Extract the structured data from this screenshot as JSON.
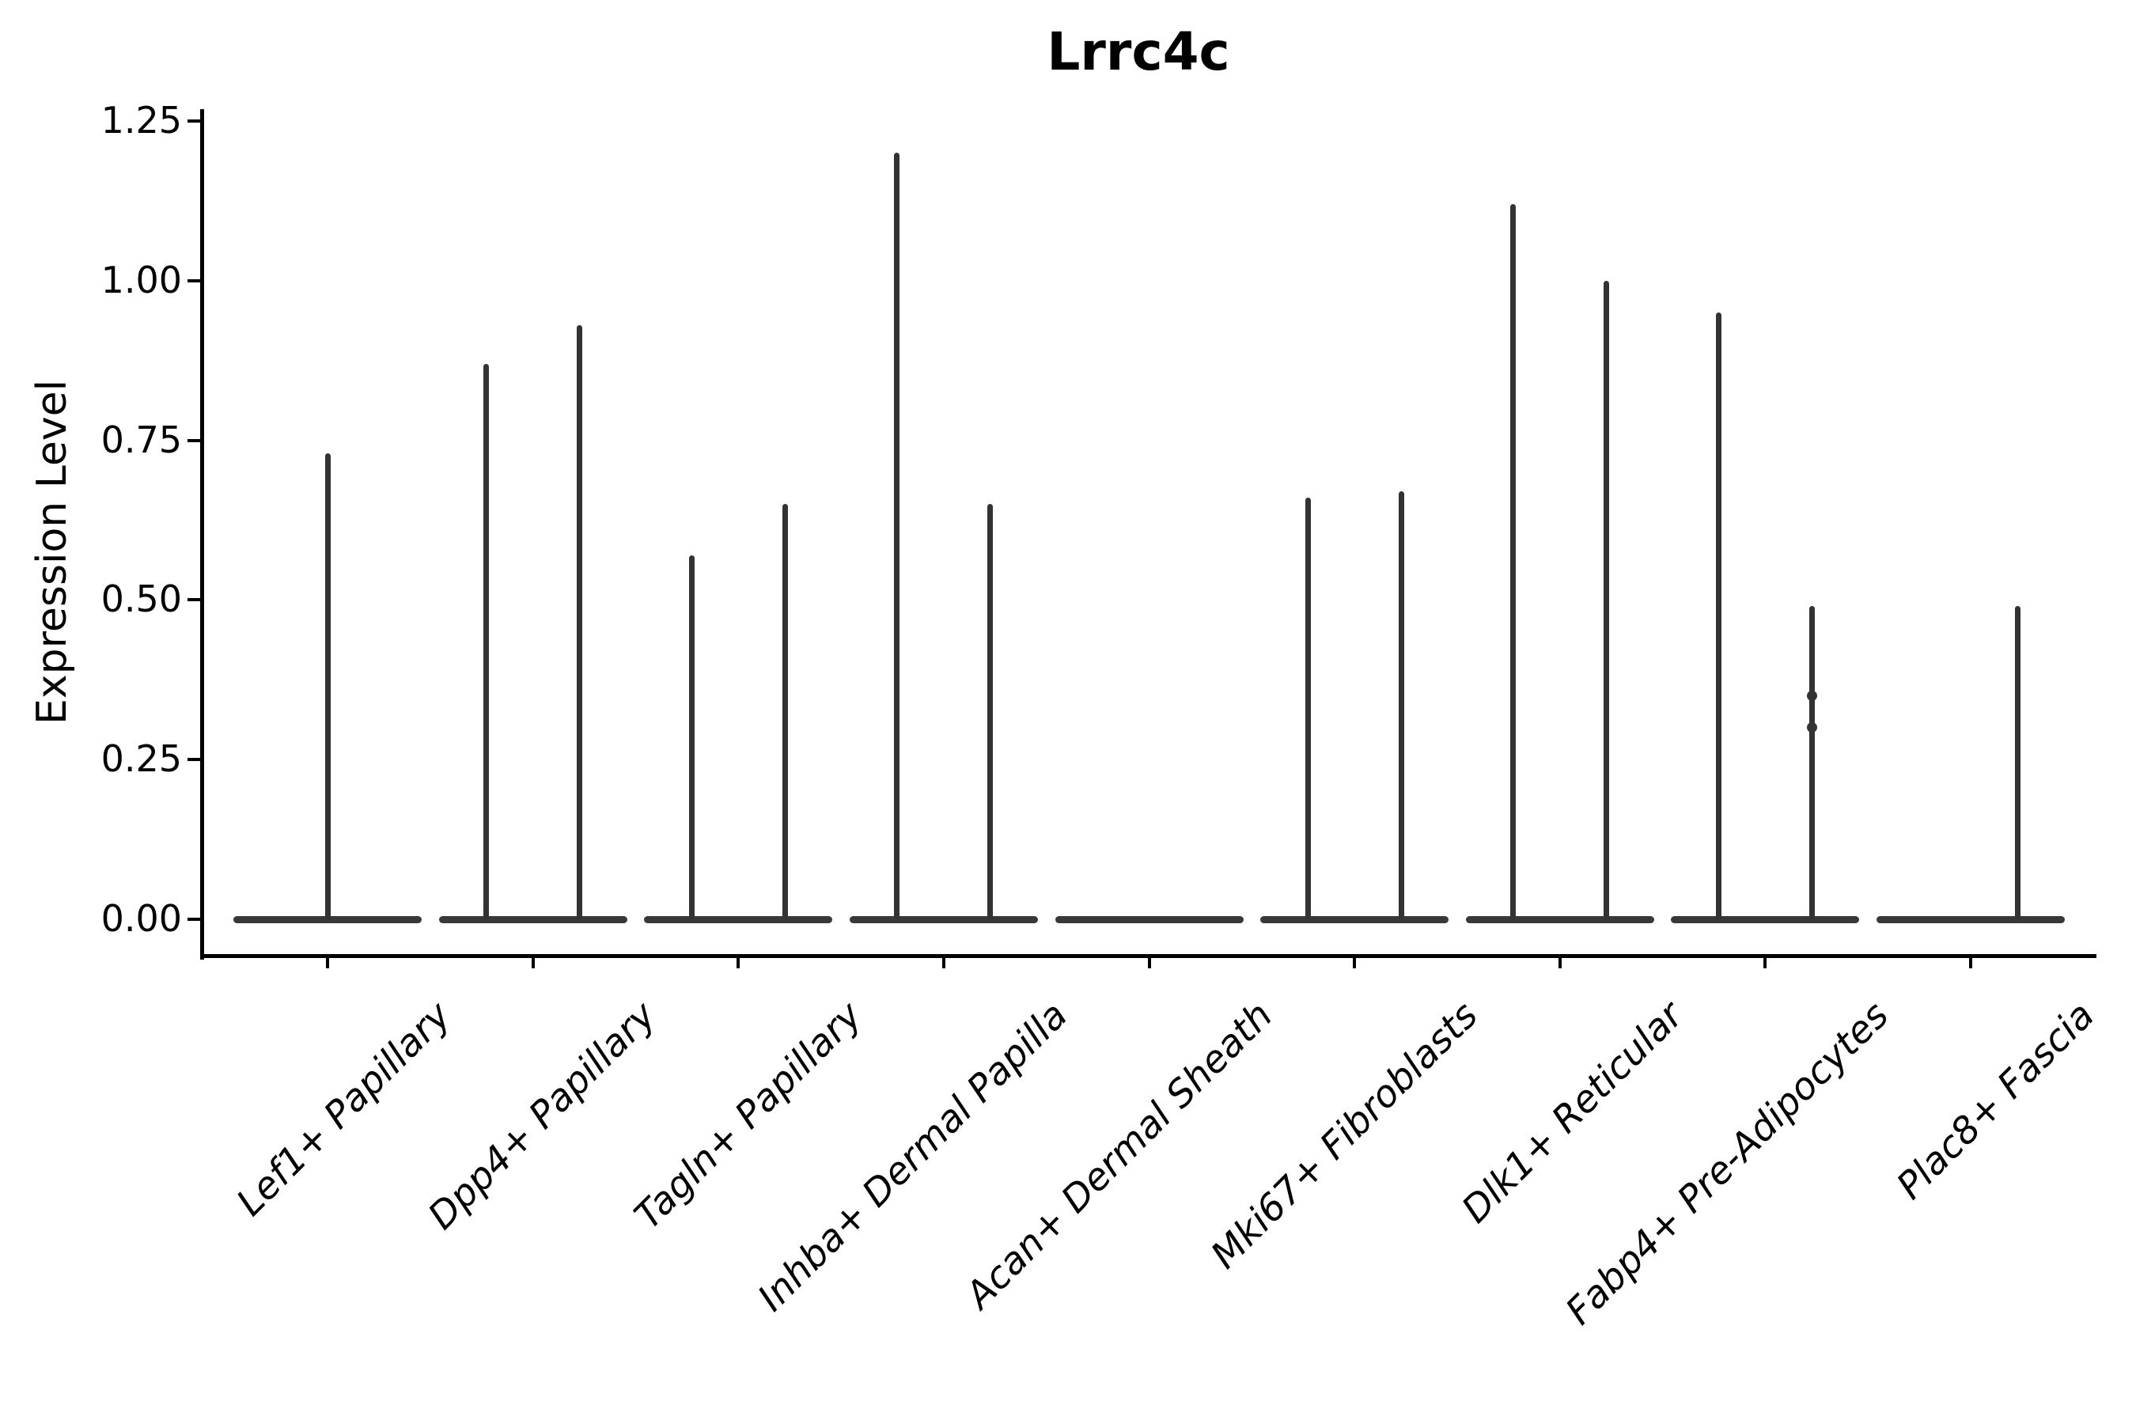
{
  "chart_data": {
    "type": "violin",
    "title": "Lrrc4c",
    "ylabel": "Expression Level",
    "xlabel": "",
    "grid": false,
    "legend": "none",
    "ylim": [
      -0.06,
      1.27
    ],
    "ytick_values": [
      0.0,
      0.25,
      0.5,
      0.75,
      1.0,
      1.25
    ],
    "ytick_labels": [
      "0.00",
      "0.25",
      "0.50",
      "0.75",
      "1.00",
      "1.25"
    ],
    "categories": [
      "Lef1+ Papillary",
      "Dpp4+ Papillary",
      "Tagln+ Papillary",
      "Inhba+ Dermal Papilla",
      "Acan+ Dermal Sheath",
      "Mki67+ Fibroblasts",
      "Dlk1+ Reticular",
      "Fabp4+ Pre-Adipocytes",
      "Plac8+ Fascia"
    ],
    "description": "Violin plot; nearly all cells at 0 so each violin collapses to a flat baseline at 0 with a thin vertical spike up to the max expression. Most categories contain two side-by-side violins.",
    "groups": [
      {
        "category": "Lef1+ Papillary",
        "violins": [
          {
            "pos": "center",
            "max": 0.73
          }
        ]
      },
      {
        "category": "Dpp4+ Papillary",
        "violins": [
          {
            "pos": "left",
            "max": 0.87
          },
          {
            "pos": "right",
            "max": 0.93
          }
        ]
      },
      {
        "category": "Tagln+ Papillary",
        "violins": [
          {
            "pos": "left",
            "max": 0.57
          },
          {
            "pos": "right",
            "max": 0.65
          }
        ]
      },
      {
        "category": "Inhba+ Dermal Papilla",
        "violins": [
          {
            "pos": "left",
            "max": 1.2
          },
          {
            "pos": "right",
            "max": 0.65
          }
        ]
      },
      {
        "category": "Acan+ Dermal Sheath",
        "violins": [
          {
            "pos": "left",
            "max": 0.0
          },
          {
            "pos": "right",
            "max": 0.0
          }
        ]
      },
      {
        "category": "Mki67+ Fibroblasts",
        "violins": [
          {
            "pos": "left",
            "max": 0.66
          },
          {
            "pos": "right",
            "max": 0.67
          }
        ]
      },
      {
        "category": "Dlk1+ Reticular",
        "violins": [
          {
            "pos": "left",
            "max": 1.12
          },
          {
            "pos": "right",
            "max": 1.0
          }
        ]
      },
      {
        "category": "Fabp4+ Pre-Adipocytes",
        "violins": [
          {
            "pos": "left",
            "max": 0.95
          },
          {
            "pos": "right",
            "max": 0.49,
            "knots": [
              0.35,
              0.3
            ]
          }
        ]
      },
      {
        "category": "Plac8+ Fascia",
        "violins": [
          {
            "pos": "left",
            "max": 0.0
          },
          {
            "pos": "right",
            "max": 0.49
          }
        ]
      }
    ],
    "colors": {
      "violin_line": "#333333",
      "violin_baseline": "#383838",
      "axis": "#000000",
      "text": "#000000",
      "background": "#ffffff"
    }
  }
}
